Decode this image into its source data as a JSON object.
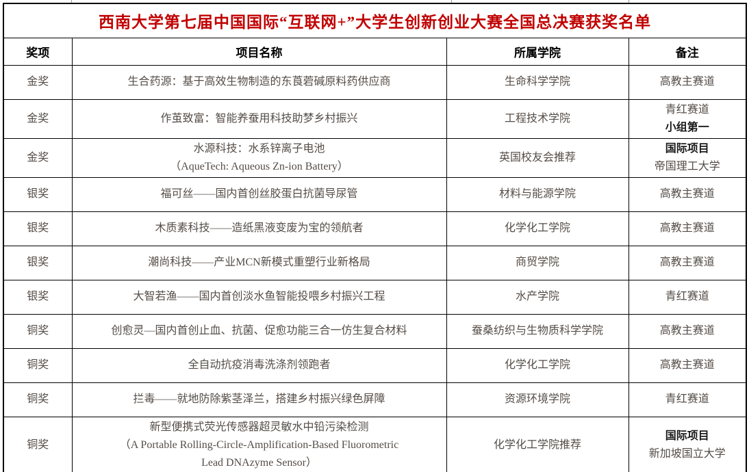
{
  "title": "西南大学第七届中国国际“互联网+”大学生创新创业大赛全国总决赛获奖名单",
  "columns": [
    "奖项",
    "项目名称",
    "所属学院",
    "备注"
  ],
  "colors": {
    "title_red": "#c00000",
    "body_text": "#554d47",
    "border": "#000000"
  },
  "rows": [
    {
      "award": "金奖",
      "project": [
        "生合药源：基于高效生物制造的东莨菪碱原料药供应商"
      ],
      "college": "生命科学学院",
      "remark": [
        {
          "text": "高教主赛道",
          "bold": false
        }
      ]
    },
    {
      "award": "金奖",
      "project": [
        "作茧致富：智能养蚕用科技助梦乡村振兴"
      ],
      "college": "工程技术学院",
      "remark": [
        {
          "text": "青红赛道",
          "bold": false
        },
        {
          "text": "小组第一",
          "bold": true
        }
      ]
    },
    {
      "award": "金奖",
      "project": [
        "水源科技：水系锌离子电池",
        "（AqueTech: Aqueous Zn-ion Battery）"
      ],
      "college": "英国校友会推荐",
      "remark": [
        {
          "text": "国际项目",
          "bold": true
        },
        {
          "text": "帝国理工大学",
          "bold": false
        }
      ]
    },
    {
      "award": "银奖",
      "project": [
        "福可丝——国内首创丝胶蛋白抗菌导尿管"
      ],
      "college": "材料与能源学院",
      "remark": [
        {
          "text": "高教主赛道",
          "bold": false
        }
      ]
    },
    {
      "award": "银奖",
      "project": [
        "木质素科技——造纸黑液变废为宝的领航者"
      ],
      "college": "化学化工学院",
      "remark": [
        {
          "text": "高教主赛道",
          "bold": false
        }
      ]
    },
    {
      "award": "银奖",
      "project": [
        "潮尚科技——产业MCN新模式重塑行业新格局"
      ],
      "college": "商贸学院",
      "remark": [
        {
          "text": "高教主赛道",
          "bold": false
        }
      ]
    },
    {
      "award": "银奖",
      "project": [
        "大智若渔——国内首创淡水鱼智能投喂乡村振兴工程"
      ],
      "college": "水产学院",
      "remark": [
        {
          "text": "青红赛道",
          "bold": false
        }
      ]
    },
    {
      "award": "铜奖",
      "project": [
        "创愈灵—国内首创止血、抗菌、促愈功能三合一仿生复合材料"
      ],
      "college": "蚕桑纺织与生物质科学学院",
      "remark": [
        {
          "text": "高教主赛道",
          "bold": false
        }
      ]
    },
    {
      "award": "铜奖",
      "project": [
        "全自动抗疫消毒洗涤剂领跑者"
      ],
      "college": "化学化工学院",
      "remark": [
        {
          "text": "高教主赛道",
          "bold": false
        }
      ]
    },
    {
      "award": "铜奖",
      "project": [
        "拦毒——就地防除紫茎泽兰，搭建乡村振兴绿色屏障"
      ],
      "college": "资源环境学院",
      "remark": [
        {
          "text": "青红赛道",
          "bold": false
        }
      ]
    },
    {
      "award": "铜奖",
      "project": [
        "新型便携式荧光传感器超灵敏水中铅污染检测",
        "（A Portable Rolling-Circle-Amplification-Based Fluorometric",
        "Lead DNAzyme Sensor）"
      ],
      "college": "化学化工学院推荐",
      "remark": [
        {
          "text": "国际项目",
          "bold": true
        },
        {
          "text": "新加坡国立大学",
          "bold": false
        }
      ]
    }
  ]
}
